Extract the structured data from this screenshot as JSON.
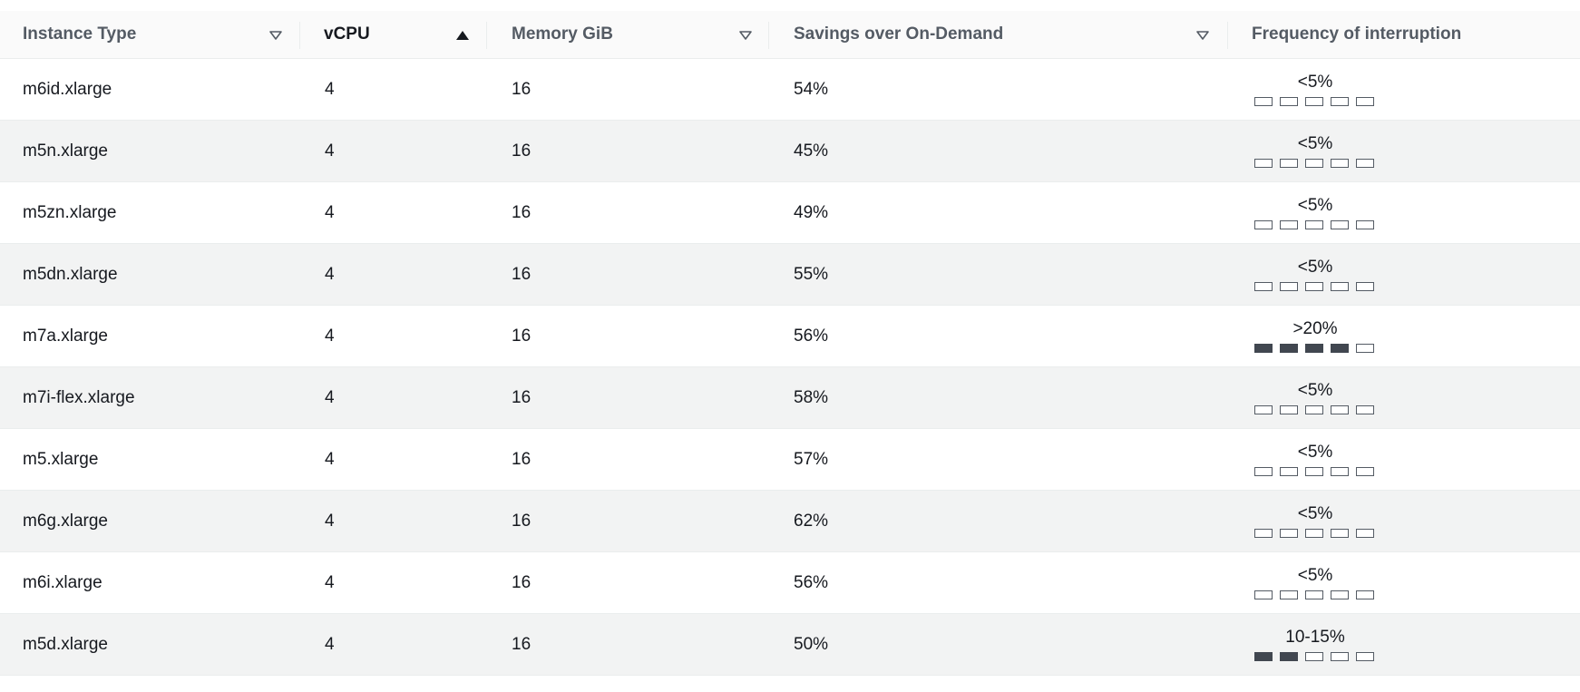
{
  "table": {
    "columns": [
      {
        "label": "Instance Type",
        "sort": "none"
      },
      {
        "label": "vCPU",
        "sort": "ascending"
      },
      {
        "label": "Memory GiB",
        "sort": "none"
      },
      {
        "label": "Savings over On-Demand",
        "sort": "none"
      },
      {
        "label": "Frequency of interruption",
        "sort": "none"
      }
    ],
    "rows": [
      {
        "instance_type": "m6id.xlarge",
        "vcpu": "4",
        "memory": "16",
        "savings": "54%",
        "interruption": "<5%",
        "level": 0
      },
      {
        "instance_type": "m5n.xlarge",
        "vcpu": "4",
        "memory": "16",
        "savings": "45%",
        "interruption": "<5%",
        "level": 0
      },
      {
        "instance_type": "m5zn.xlarge",
        "vcpu": "4",
        "memory": "16",
        "savings": "49%",
        "interruption": "<5%",
        "level": 0
      },
      {
        "instance_type": "m5dn.xlarge",
        "vcpu": "4",
        "memory": "16",
        "savings": "55%",
        "interruption": "<5%",
        "level": 0
      },
      {
        "instance_type": "m7a.xlarge",
        "vcpu": "4",
        "memory": "16",
        "savings": "56%",
        "interruption": ">20%",
        "level": 4
      },
      {
        "instance_type": "m7i-flex.xlarge",
        "vcpu": "4",
        "memory": "16",
        "savings": "58%",
        "interruption": "<5%",
        "level": 0
      },
      {
        "instance_type": "m5.xlarge",
        "vcpu": "4",
        "memory": "16",
        "savings": "57%",
        "interruption": "<5%",
        "level": 0
      },
      {
        "instance_type": "m6g.xlarge",
        "vcpu": "4",
        "memory": "16",
        "savings": "62%",
        "interruption": "<5%",
        "level": 0
      },
      {
        "instance_type": "m6i.xlarge",
        "vcpu": "4",
        "memory": "16",
        "savings": "56%",
        "interruption": "<5%",
        "level": 0
      },
      {
        "instance_type": "m5d.xlarge",
        "vcpu": "4",
        "memory": "16",
        "savings": "50%",
        "interruption": "10-15%",
        "level": 2
      }
    ],
    "interruption_scale_max": 5
  },
  "icons": {
    "sort_none": "sort-caret-down-outline-icon",
    "sort_ascending": "sort-caret-up-filled-icon"
  },
  "colors": {
    "header_bg": "#fafafa",
    "row_alt_bg": "#f2f3f3",
    "bar_filled": "#414750",
    "bar_outline": "#545b64"
  }
}
